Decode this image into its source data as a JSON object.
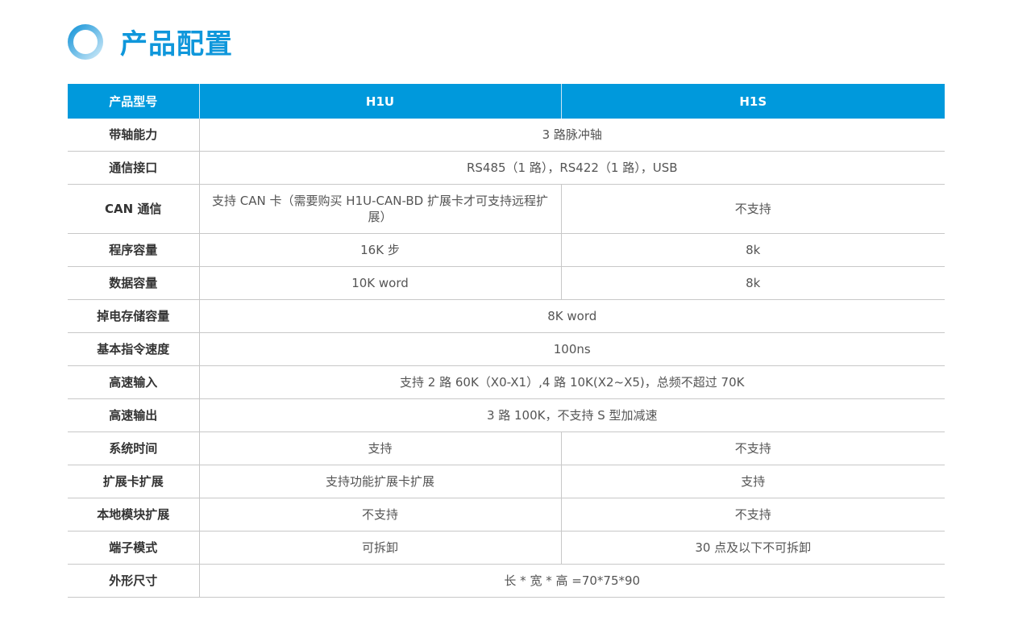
{
  "title": "产品配置",
  "header": {
    "label": "产品型号",
    "h1u": "H1U",
    "h1s": "H1S"
  },
  "rows": [
    {
      "label": "带轴能力",
      "value": "3 路脉冲轴"
    },
    {
      "label": "通信接口",
      "value": "RS485（1 路），RS422（1 路），USB"
    },
    {
      "label": "CAN 通信",
      "h1u": "支持 CAN 卡（需要购买 H1U-CAN-BD 扩展卡才可支持远程扩展）",
      "h1s": "不支持"
    },
    {
      "label": "程序容量",
      "h1u": "16K 步",
      "h1s": "8k"
    },
    {
      "label": "数据容量",
      "h1u": "10K word",
      "h1s": "8k"
    },
    {
      "label": "掉电存储容量",
      "value": "8K word"
    },
    {
      "label": "基本指令速度",
      "value": "100ns"
    },
    {
      "label": "高速输入",
      "value": "支持 2 路 60K（X0-X1）,4 路 10K(X2~X5)，总频不超过 70K"
    },
    {
      "label": "高速输出",
      "value": "3 路 100K，不支持 S 型加减速"
    },
    {
      "label": "系统时间",
      "h1u": "支持",
      "h1s": "不支持"
    },
    {
      "label": "扩展卡扩展",
      "h1u": "支持功能扩展卡扩展",
      "h1s": "支持"
    },
    {
      "label": "本地模块扩展",
      "h1u": "不支持",
      "h1s": "不支持"
    },
    {
      "label": "端子模式",
      "h1u": "可拆卸",
      "h1s": "30 点及以下不可拆卸"
    },
    {
      "label": "外形尺寸",
      "value": "长 * 宽 * 高 =70*75*90"
    }
  ]
}
